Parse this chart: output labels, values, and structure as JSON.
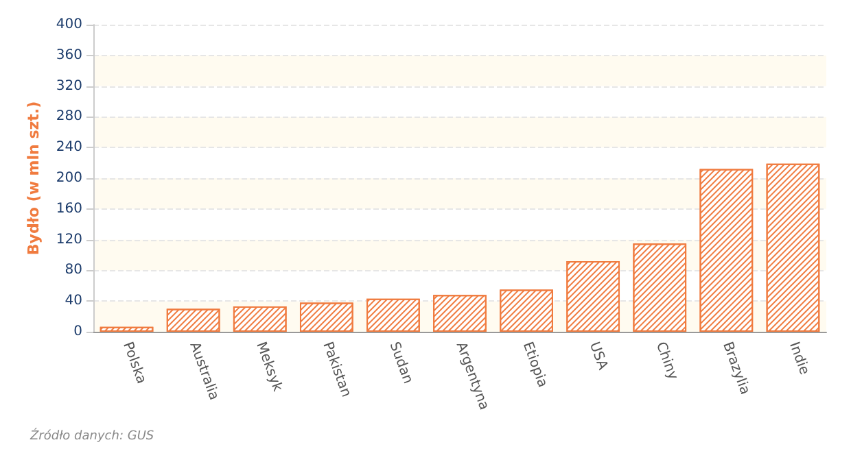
{
  "chart_data": {
    "type": "bar",
    "ylabel": "Bydło (w mln szt.)",
    "categories": [
      "Polska",
      "Australia",
      "Meksyk",
      "Pakistan",
      "Sudan",
      "Argentyna",
      "Etiopia",
      "USA",
      "Chiny",
      "Brazylia",
      "Indie"
    ],
    "values": [
      6.5,
      30,
      33,
      38,
      43,
      48,
      55,
      92,
      115,
      212,
      219
    ],
    "color": "#f07b3f",
    "ylim": [
      0,
      400
    ],
    "yticks": [
      0,
      40,
      80,
      120,
      160,
      200,
      240,
      280,
      320,
      360,
      400
    ],
    "grid": "y",
    "annotations": [
      "Źródło danych: GUS"
    ]
  }
}
